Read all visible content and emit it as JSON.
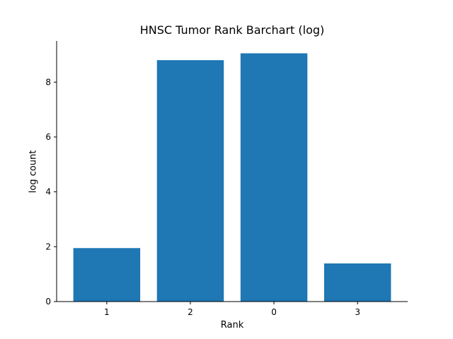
{
  "chart_data": {
    "type": "bar",
    "title": "HNSC Tumor Rank Barchart (log)",
    "xlabel": "Rank",
    "ylabel": "log count",
    "categories": [
      "1",
      "2",
      "0",
      "3"
    ],
    "values": [
      1.95,
      8.8,
      9.05,
      1.39
    ],
    "ylim": [
      0,
      9.5
    ],
    "yticks": [
      0,
      2,
      4,
      6,
      8
    ],
    "bar_color": "#1f77b4",
    "grid": false,
    "legend": false
  }
}
